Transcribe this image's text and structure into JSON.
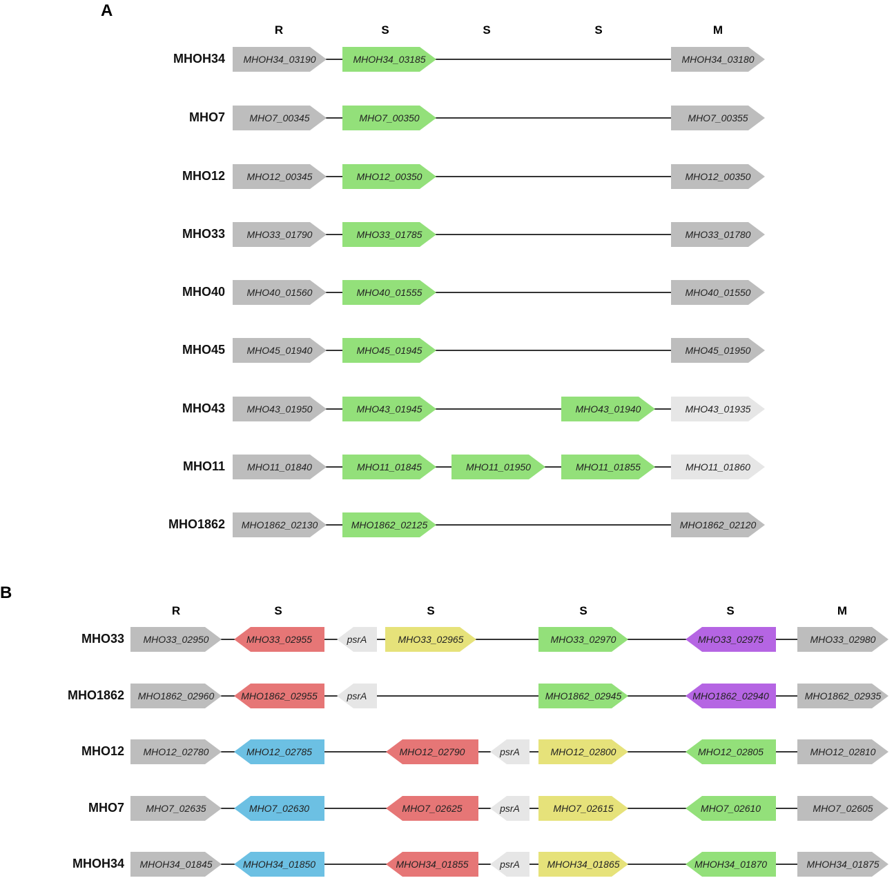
{
  "colors": {
    "gray": "#bdbdbd",
    "light_gray": "#e6e6e6",
    "green": "#93e07a",
    "red": "#e67676",
    "yellow": "#e6e27a",
    "blue": "#6cc0e3",
    "purple": "#b565e3",
    "line": "#333333"
  },
  "panel_a": {
    "letter": "A",
    "headers": [
      "R",
      "S",
      "S",
      "S",
      "M"
    ],
    "rows": [
      {
        "strain": "MHOH34",
        "genes": [
          {
            "slot": 0,
            "name": "MHOH34_03190",
            "color": "gray",
            "dir": "right"
          },
          {
            "slot": 1,
            "name": "MHOH34_03185",
            "color": "green",
            "dir": "right"
          },
          {
            "slot": 4,
            "name": "MHOH34_03180",
            "color": "gray",
            "dir": "right"
          }
        ]
      },
      {
        "strain": "MHO7",
        "genes": [
          {
            "slot": 0,
            "name": "MHO7_00345",
            "color": "gray",
            "dir": "right"
          },
          {
            "slot": 1,
            "name": "MHO7_00350",
            "color": "green",
            "dir": "right"
          },
          {
            "slot": 4,
            "name": "MHO7_00355",
            "color": "gray",
            "dir": "right"
          }
        ]
      },
      {
        "strain": "MHO12",
        "genes": [
          {
            "slot": 0,
            "name": "MHO12_00345",
            "color": "gray",
            "dir": "right"
          },
          {
            "slot": 1,
            "name": "MHO12_00350",
            "color": "green",
            "dir": "right"
          },
          {
            "slot": 4,
            "name": "MHO12_00350",
            "color": "gray",
            "dir": "right"
          }
        ]
      },
      {
        "strain": "MHO33",
        "genes": [
          {
            "slot": 0,
            "name": "MHO33_01790",
            "color": "gray",
            "dir": "right"
          },
          {
            "slot": 1,
            "name": "MHO33_01785",
            "color": "green",
            "dir": "right"
          },
          {
            "slot": 4,
            "name": "MHO33_01780",
            "color": "gray",
            "dir": "right"
          }
        ]
      },
      {
        "strain": "MHO40",
        "genes": [
          {
            "slot": 0,
            "name": "MHO40_01560",
            "color": "gray",
            "dir": "right"
          },
          {
            "slot": 1,
            "name": "MHO40_01555",
            "color": "green",
            "dir": "right"
          },
          {
            "slot": 4,
            "name": "MHO40_01550",
            "color": "gray",
            "dir": "right"
          }
        ]
      },
      {
        "strain": "MHO45",
        "genes": [
          {
            "slot": 0,
            "name": "MHO45_01940",
            "color": "gray",
            "dir": "right"
          },
          {
            "slot": 1,
            "name": "MHO45_01945",
            "color": "green",
            "dir": "right"
          },
          {
            "slot": 4,
            "name": "MHO45_01950",
            "color": "gray",
            "dir": "right"
          }
        ]
      },
      {
        "strain": "MHO43",
        "genes": [
          {
            "slot": 0,
            "name": "MHO43_01950",
            "color": "gray",
            "dir": "right"
          },
          {
            "slot": 1,
            "name": "MHO43_01945",
            "color": "green",
            "dir": "right"
          },
          {
            "slot": 3,
            "name": "MHO43_01940",
            "color": "green",
            "dir": "right"
          },
          {
            "slot": 4,
            "name": "MHO43_01935",
            "color": "light_gray",
            "dir": "right"
          }
        ]
      },
      {
        "strain": "MHO11",
        "genes": [
          {
            "slot": 0,
            "name": "MHO11_01840",
            "color": "gray",
            "dir": "right"
          },
          {
            "slot": 1,
            "name": "MHO11_01845",
            "color": "green",
            "dir": "right"
          },
          {
            "slot": 2,
            "name": "MHO11_01950",
            "color": "green",
            "dir": "right"
          },
          {
            "slot": 3,
            "name": "MHO11_01855",
            "color": "green",
            "dir": "right"
          },
          {
            "slot": 4,
            "name": "MHO11_01860",
            "color": "light_gray",
            "dir": "right"
          }
        ]
      },
      {
        "strain": "MHO1862",
        "genes": [
          {
            "slot": 0,
            "name": "MHO1862_02130",
            "color": "gray",
            "dir": "right"
          },
          {
            "slot": 1,
            "name": "MHO1862_02125",
            "color": "green",
            "dir": "right"
          },
          {
            "slot": 4,
            "name": "MHO1862_02120",
            "color": "gray",
            "dir": "right"
          }
        ]
      }
    ]
  },
  "panel_b": {
    "letter": "B",
    "headers": [
      "R",
      "S",
      "S",
      "S",
      "S",
      "M"
    ],
    "rows": [
      {
        "strain": "MHO33",
        "genes": [
          {
            "slot": "R",
            "name": "MHO33_02950",
            "color": "gray",
            "dir": "right"
          },
          {
            "slot": "S1",
            "name": "MHO33_02955",
            "color": "red",
            "dir": "left"
          },
          {
            "slot": "P1",
            "name": "psrA",
            "color": "light_gray",
            "dir": "left"
          },
          {
            "slot": "Y1",
            "name": "MHO33_02965",
            "color": "yellow",
            "dir": "right"
          },
          {
            "slot": "S3",
            "name": "MHO33_02970",
            "color": "green",
            "dir": "right"
          },
          {
            "slot": "S4",
            "name": "MHO33_02975",
            "color": "purple",
            "dir": "left"
          },
          {
            "slot": "M",
            "name": "MHO33_02980",
            "color": "gray",
            "dir": "right"
          }
        ]
      },
      {
        "strain": "MHO1862",
        "genes": [
          {
            "slot": "R",
            "name": "MHO1862_02960",
            "color": "gray",
            "dir": "right"
          },
          {
            "slot": "S1",
            "name": "MHO1862_02955",
            "color": "red",
            "dir": "left"
          },
          {
            "slot": "P1",
            "name": "psrA",
            "color": "light_gray",
            "dir": "left"
          },
          {
            "slot": "S3",
            "name": "MHO1862_02945",
            "color": "green",
            "dir": "right"
          },
          {
            "slot": "S4",
            "name": "MHO1862_02940",
            "color": "purple",
            "dir": "left"
          },
          {
            "slot": "M",
            "name": "MHO1862_02935",
            "color": "gray",
            "dir": "right"
          }
        ]
      },
      {
        "strain": "MHO12",
        "genes": [
          {
            "slot": "R",
            "name": "MHO12_02780",
            "color": "gray",
            "dir": "right"
          },
          {
            "slot": "S1",
            "name": "MHO12_02785",
            "color": "blue",
            "dir": "left"
          },
          {
            "slot": "S2",
            "name": "MHO12_02790",
            "color": "red",
            "dir": "left"
          },
          {
            "slot": "P2",
            "name": "psrA",
            "color": "light_gray",
            "dir": "left"
          },
          {
            "slot": "S3",
            "name": "MHO12_02800",
            "color": "yellow",
            "dir": "right"
          },
          {
            "slot": "S4",
            "name": "MHO12_02805",
            "color": "green",
            "dir": "left"
          },
          {
            "slot": "M",
            "name": "MHO12_02810",
            "color": "gray",
            "dir": "right"
          }
        ]
      },
      {
        "strain": "MHO7",
        "genes": [
          {
            "slot": "R",
            "name": "MHO7_02635",
            "color": "gray",
            "dir": "right"
          },
          {
            "slot": "S1",
            "name": "MHO7_02630",
            "color": "blue",
            "dir": "left"
          },
          {
            "slot": "S2",
            "name": "MHO7_02625",
            "color": "red",
            "dir": "left"
          },
          {
            "slot": "P2",
            "name": "psrA",
            "color": "light_gray",
            "dir": "left"
          },
          {
            "slot": "S3",
            "name": "MHO7_02615",
            "color": "yellow",
            "dir": "right"
          },
          {
            "slot": "S4",
            "name": "MHO7_02610",
            "color": "green",
            "dir": "left"
          },
          {
            "slot": "M",
            "name": "MHO7_02605",
            "color": "gray",
            "dir": "right"
          }
        ]
      },
      {
        "strain": "MHOH34",
        "genes": [
          {
            "slot": "R",
            "name": "MHOH34_01845",
            "color": "gray",
            "dir": "right"
          },
          {
            "slot": "S1",
            "name": "MHOH34_01850",
            "color": "blue",
            "dir": "left"
          },
          {
            "slot": "S2",
            "name": "MHOH34_01855",
            "color": "red",
            "dir": "left"
          },
          {
            "slot": "P2",
            "name": "psrA",
            "color": "light_gray",
            "dir": "left"
          },
          {
            "slot": "S3",
            "name": "MHOH34_01865",
            "color": "yellow",
            "dir": "right"
          },
          {
            "slot": "S4",
            "name": "MHOH34_01870",
            "color": "green",
            "dir": "left"
          },
          {
            "slot": "M",
            "name": "MHOH34_01875",
            "color": "gray",
            "dir": "right"
          }
        ]
      }
    ]
  }
}
